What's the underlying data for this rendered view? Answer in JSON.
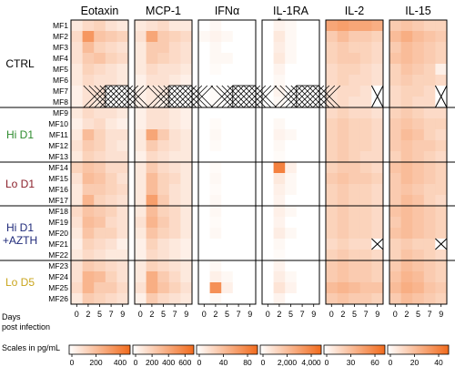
{
  "chart_data": {
    "type": "heatmap",
    "columns": [
      "Eotaxin",
      "MCP-1",
      "IFNα",
      "IL-1RA",
      "IL-2",
      "IL-15"
    ],
    "days": [
      "0",
      "2",
      "5",
      "7",
      "9"
    ],
    "rows": [
      "MF1",
      "MF2",
      "MF3",
      "MF4",
      "MF5",
      "MF6",
      "MF7",
      "MF8",
      "MF9",
      "MF10",
      "MF11",
      "MF12",
      "MF13",
      "MF14",
      "MF15",
      "MF16",
      "MF17",
      "MF18",
      "MF19",
      "MF20",
      "MF21",
      "MF22",
      "MF23",
      "MF24",
      "MF25",
      "MF26"
    ],
    "groups": [
      {
        "label": "CTRL",
        "color": "#000000",
        "rows": [
          0,
          7
        ]
      },
      {
        "label": "Hi D1",
        "color": "#2e8b2e",
        "rows": [
          8,
          12
        ]
      },
      {
        "label": "Lo D1",
        "color": "#8b1f2a",
        "rows": [
          13,
          16
        ]
      },
      {
        "label": "Hi D1",
        "label2": "+AZTH",
        "color": "#1f2a7a",
        "rows": [
          17,
          21
        ]
      },
      {
        "label": "Lo D5",
        "color": "#c9a51c",
        "rows": [
          22,
          25
        ]
      }
    ],
    "significance": [
      {
        "column": "IL-1RA",
        "text": "*"
      }
    ],
    "missing_markers": [
      {
        "column": "Eotaxin",
        "rows": [
          6,
          7
        ],
        "days": [
          3,
          4
        ]
      },
      {
        "column": "MCP-1",
        "rows": [
          6,
          7
        ],
        "days": [
          3,
          4
        ]
      },
      {
        "column": "IFNα",
        "rows": [
          6,
          7
        ],
        "days": [
          3,
          4
        ]
      },
      {
        "column": "IL-1RA",
        "rows": [
          6,
          7
        ],
        "days": [
          3,
          4
        ]
      },
      {
        "column": "IL-2",
        "rows": [
          6,
          7
        ],
        "days": [
          4,
          4
        ]
      },
      {
        "column": "IL-2",
        "rows": [
          20,
          20
        ],
        "days": [
          4,
          4
        ]
      },
      {
        "column": "IL-15",
        "rows": [
          6,
          7
        ],
        "days": [
          4,
          4
        ]
      },
      {
        "column": "IL-15",
        "rows": [
          20,
          20
        ],
        "days": [
          4,
          4
        ]
      }
    ],
    "values": {
      "Eotaxin": [
        [
          0.15,
          0.25,
          0.3,
          0.2,
          0.15
        ],
        [
          0.25,
          0.7,
          0.4,
          0.35,
          0.3
        ],
        [
          0.2,
          0.45,
          0.3,
          0.25,
          0.2
        ],
        [
          0.2,
          0.35,
          0.4,
          0.3,
          0.25
        ],
        [
          0.15,
          0.3,
          0.25,
          0.2,
          0.15
        ],
        [
          0.15,
          0.25,
          0.2,
          0.2,
          0.15
        ],
        [
          0.1,
          0.2,
          0.2,
          0.0,
          0.0
        ],
        [
          0.1,
          0.2,
          0.15,
          0.0,
          0.0
        ],
        [
          0.15,
          0.25,
          0.2,
          0.2,
          0.15
        ],
        [
          0.1,
          0.2,
          0.25,
          0.15,
          0.1
        ],
        [
          0.15,
          0.45,
          0.3,
          0.2,
          0.2
        ],
        [
          0.2,
          0.35,
          0.3,
          0.2,
          0.15
        ],
        [
          0.15,
          0.3,
          0.25,
          0.2,
          0.2
        ],
        [
          0.3,
          0.4,
          0.35,
          0.25,
          0.25
        ],
        [
          0.2,
          0.45,
          0.4,
          0.3,
          0.2
        ],
        [
          0.15,
          0.35,
          0.35,
          0.3,
          0.25
        ],
        [
          0.15,
          0.5,
          0.3,
          0.25,
          0.2
        ],
        [
          0.25,
          0.4,
          0.35,
          0.3,
          0.2
        ],
        [
          0.2,
          0.45,
          0.4,
          0.25,
          0.2
        ],
        [
          0.15,
          0.4,
          0.3,
          0.3,
          0.2
        ],
        [
          0.1,
          0.3,
          0.25,
          0.2,
          0.1
        ],
        [
          0.15,
          0.25,
          0.2,
          0.15,
          0.15
        ],
        [
          0.2,
          0.35,
          0.3,
          0.25,
          0.2
        ],
        [
          0.2,
          0.5,
          0.45,
          0.3,
          0.2
        ],
        [
          0.25,
          0.5,
          0.35,
          0.35,
          0.25
        ],
        [
          0.15,
          0.35,
          0.3,
          0.25,
          0.2
        ]
      ],
      "MCP-1": [
        [
          0.15,
          0.2,
          0.25,
          0.15,
          0.15
        ],
        [
          0.2,
          0.6,
          0.35,
          0.3,
          0.25
        ],
        [
          0.15,
          0.35,
          0.35,
          0.25,
          0.2
        ],
        [
          0.15,
          0.35,
          0.3,
          0.25,
          0.2
        ],
        [
          0.15,
          0.25,
          0.2,
          0.2,
          0.15
        ],
        [
          0.1,
          0.2,
          0.2,
          0.15,
          0.1
        ],
        [
          0.1,
          0.15,
          0.15,
          0.0,
          0.0
        ],
        [
          0.1,
          0.15,
          0.1,
          0.0,
          0.0
        ],
        [
          0.1,
          0.2,
          0.2,
          0.15,
          0.1
        ],
        [
          0.1,
          0.2,
          0.2,
          0.15,
          0.1
        ],
        [
          0.15,
          0.6,
          0.35,
          0.2,
          0.15
        ],
        [
          0.15,
          0.35,
          0.25,
          0.2,
          0.15
        ],
        [
          0.1,
          0.25,
          0.2,
          0.15,
          0.15
        ],
        [
          0.15,
          0.35,
          0.25,
          0.2,
          0.15
        ],
        [
          0.15,
          0.45,
          0.3,
          0.25,
          0.15
        ],
        [
          0.15,
          0.45,
          0.3,
          0.2,
          0.15
        ],
        [
          0.15,
          0.65,
          0.35,
          0.2,
          0.15
        ],
        [
          0.15,
          0.45,
          0.3,
          0.25,
          0.15
        ],
        [
          0.2,
          0.5,
          0.35,
          0.25,
          0.15
        ],
        [
          0.15,
          0.4,
          0.3,
          0.25,
          0.15
        ],
        [
          0.1,
          0.3,
          0.2,
          0.15,
          0.1
        ],
        [
          0.1,
          0.25,
          0.2,
          0.15,
          0.1
        ],
        [
          0.15,
          0.3,
          0.25,
          0.2,
          0.15
        ],
        [
          0.15,
          0.55,
          0.35,
          0.25,
          0.15
        ],
        [
          0.2,
          0.55,
          0.4,
          0.3,
          0.2
        ],
        [
          0.1,
          0.35,
          0.25,
          0.2,
          0.15
        ]
      ],
      "IFNα": [
        [
          0.0,
          0.05,
          0.0,
          0.0,
          0.0
        ],
        [
          0.05,
          0.08,
          0.05,
          0.0,
          0.0
        ],
        [
          0.0,
          0.05,
          0.0,
          0.0,
          0.0
        ],
        [
          0.0,
          0.05,
          0.05,
          0.0,
          0.0
        ],
        [
          0.0,
          0.03,
          0.0,
          0.0,
          0.0
        ],
        [
          0.0,
          0.0,
          0.0,
          0.0,
          0.0
        ],
        [
          0.0,
          0.03,
          0.0,
          0.0,
          0.0
        ],
        [
          0.0,
          0.03,
          0.0,
          0.0,
          0.0
        ],
        [
          0.0,
          0.0,
          0.0,
          0.0,
          0.0
        ],
        [
          0.0,
          0.03,
          0.0,
          0.0,
          0.0
        ],
        [
          0.0,
          0.05,
          0.0,
          0.0,
          0.0
        ],
        [
          0.0,
          0.03,
          0.0,
          0.0,
          0.0
        ],
        [
          0.0,
          0.0,
          0.0,
          0.0,
          0.0
        ],
        [
          0.0,
          0.03,
          0.0,
          0.0,
          0.0
        ],
        [
          0.0,
          0.05,
          0.0,
          0.0,
          0.0
        ],
        [
          0.0,
          0.03,
          0.0,
          0.0,
          0.0
        ],
        [
          0.0,
          0.05,
          0.0,
          0.0,
          0.0
        ],
        [
          0.0,
          0.05,
          0.0,
          0.0,
          0.0
        ],
        [
          0.0,
          0.03,
          0.0,
          0.0,
          0.0
        ],
        [
          0.0,
          0.05,
          0.0,
          0.0,
          0.0
        ],
        [
          0.0,
          0.0,
          0.0,
          0.0,
          0.0
        ],
        [
          0.0,
          0.0,
          0.0,
          0.0,
          0.0
        ],
        [
          0.0,
          0.05,
          0.0,
          0.0,
          0.0
        ],
        [
          0.0,
          0.1,
          0.05,
          0.0,
          0.0
        ],
        [
          0.0,
          0.75,
          0.1,
          0.0,
          0.0
        ],
        [
          0.0,
          0.05,
          0.0,
          0.0,
          0.0
        ]
      ],
      "IL-1RA": [
        [
          0.0,
          0.08,
          0.05,
          0.0,
          0.0
        ],
        [
          0.0,
          0.15,
          0.05,
          0.0,
          0.0
        ],
        [
          0.0,
          0.12,
          0.05,
          0.0,
          0.0
        ],
        [
          0.0,
          0.15,
          0.05,
          0.0,
          0.0
        ],
        [
          0.0,
          0.08,
          0.0,
          0.0,
          0.0
        ],
        [
          0.0,
          0.05,
          0.0,
          0.0,
          0.0
        ],
        [
          0.0,
          0.08,
          0.0,
          0.0,
          0.0
        ],
        [
          0.0,
          0.05,
          0.0,
          0.0,
          0.0
        ],
        [
          0.0,
          0.0,
          0.0,
          0.0,
          0.0
        ],
        [
          0.0,
          0.05,
          0.0,
          0.0,
          0.0
        ],
        [
          0.0,
          0.08,
          0.05,
          0.0,
          0.0
        ],
        [
          0.0,
          0.05,
          0.0,
          0.0,
          0.0
        ],
        [
          0.0,
          0.03,
          0.0,
          0.0,
          0.0
        ],
        [
          0.0,
          0.85,
          0.1,
          0.0,
          0.0
        ],
        [
          0.0,
          0.15,
          0.05,
          0.0,
          0.0
        ],
        [
          0.0,
          0.1,
          0.05,
          0.0,
          0.0
        ],
        [
          0.0,
          0.08,
          0.0,
          0.0,
          0.0
        ],
        [
          0.0,
          0.1,
          0.05,
          0.0,
          0.0
        ],
        [
          0.0,
          0.08,
          0.0,
          0.0,
          0.0
        ],
        [
          0.0,
          0.12,
          0.05,
          0.0,
          0.0
        ],
        [
          0.0,
          0.05,
          0.0,
          0.0,
          0.0
        ],
        [
          0.0,
          0.03,
          0.0,
          0.0,
          0.0
        ],
        [
          0.0,
          0.08,
          0.0,
          0.0,
          0.0
        ],
        [
          0.0,
          0.12,
          0.05,
          0.0,
          0.0
        ],
        [
          0.0,
          0.18,
          0.08,
          0.0,
          0.0
        ],
        [
          0.0,
          0.08,
          0.0,
          0.0,
          0.0
        ]
      ],
      "IL-2": [
        [
          0.6,
          0.65,
          0.6,
          0.6,
          0.55
        ],
        [
          0.35,
          0.45,
          0.35,
          0.35,
          0.3
        ],
        [
          0.3,
          0.35,
          0.3,
          0.3,
          0.25
        ],
        [
          0.3,
          0.35,
          0.35,
          0.3,
          0.25
        ],
        [
          0.25,
          0.3,
          0.3,
          0.25,
          0.2
        ],
        [
          0.25,
          0.3,
          0.25,
          0.25,
          0.2
        ],
        [
          0.2,
          0.25,
          0.25,
          0.2,
          0.0
        ],
        [
          0.2,
          0.25,
          0.2,
          0.2,
          0.0
        ],
        [
          0.25,
          0.3,
          0.25,
          0.25,
          0.2
        ],
        [
          0.3,
          0.35,
          0.3,
          0.3,
          0.25
        ],
        [
          0.3,
          0.35,
          0.3,
          0.3,
          0.25
        ],
        [
          0.3,
          0.35,
          0.3,
          0.3,
          0.25
        ],
        [
          0.3,
          0.35,
          0.3,
          0.25,
          0.25
        ],
        [
          0.3,
          0.35,
          0.35,
          0.3,
          0.25
        ],
        [
          0.35,
          0.4,
          0.35,
          0.35,
          0.3
        ],
        [
          0.3,
          0.35,
          0.3,
          0.3,
          0.25
        ],
        [
          0.3,
          0.35,
          0.3,
          0.3,
          0.25
        ],
        [
          0.3,
          0.35,
          0.3,
          0.3,
          0.25
        ],
        [
          0.3,
          0.35,
          0.3,
          0.3,
          0.25
        ],
        [
          0.3,
          0.35,
          0.3,
          0.3,
          0.25
        ],
        [
          0.25,
          0.3,
          0.25,
          0.25,
          0.0
        ],
        [
          0.3,
          0.35,
          0.3,
          0.3,
          0.25
        ],
        [
          0.35,
          0.4,
          0.35,
          0.35,
          0.3
        ],
        [
          0.35,
          0.4,
          0.35,
          0.35,
          0.3
        ],
        [
          0.45,
          0.5,
          0.45,
          0.4,
          0.4
        ],
        [
          0.35,
          0.4,
          0.35,
          0.35,
          0.3
        ]
      ],
      "IL-15": [
        [
          0.35,
          0.4,
          0.35,
          0.3,
          0.3
        ],
        [
          0.45,
          0.55,
          0.45,
          0.4,
          0.35
        ],
        [
          0.35,
          0.45,
          0.4,
          0.35,
          0.3
        ],
        [
          0.4,
          0.45,
          0.4,
          0.35,
          0.3
        ],
        [
          0.3,
          0.4,
          0.35,
          0.3,
          0.1
        ],
        [
          0.3,
          0.35,
          0.3,
          0.3,
          0.25
        ],
        [
          0.25,
          0.3,
          0.3,
          0.25,
          0.0
        ],
        [
          0.25,
          0.3,
          0.25,
          0.25,
          0.0
        ],
        [
          0.3,
          0.35,
          0.3,
          0.25,
          0.25
        ],
        [
          0.35,
          0.4,
          0.35,
          0.3,
          0.3
        ],
        [
          0.35,
          0.45,
          0.4,
          0.3,
          0.25
        ],
        [
          0.35,
          0.4,
          0.35,
          0.35,
          0.3
        ],
        [
          0.3,
          0.4,
          0.35,
          0.3,
          0.25
        ],
        [
          0.4,
          0.45,
          0.4,
          0.35,
          0.3
        ],
        [
          0.35,
          0.45,
          0.4,
          0.35,
          0.3
        ],
        [
          0.35,
          0.4,
          0.35,
          0.3,
          0.3
        ],
        [
          0.35,
          0.45,
          0.4,
          0.3,
          0.25
        ],
        [
          0.4,
          0.45,
          0.4,
          0.35,
          0.3
        ],
        [
          0.35,
          0.45,
          0.4,
          0.35,
          0.3
        ],
        [
          0.4,
          0.45,
          0.4,
          0.35,
          0.3
        ],
        [
          0.3,
          0.35,
          0.3,
          0.3,
          0.0
        ],
        [
          0.3,
          0.4,
          0.35,
          0.3,
          0.25
        ],
        [
          0.35,
          0.45,
          0.4,
          0.35,
          0.3
        ],
        [
          0.4,
          0.5,
          0.45,
          0.35,
          0.3
        ],
        [
          0.45,
          0.55,
          0.5,
          0.4,
          0.35
        ],
        [
          0.35,
          0.45,
          0.4,
          0.35,
          0.3
        ]
      ]
    },
    "scales": [
      {
        "column": "Eotaxin",
        "ticks": [
          "0",
          "200",
          "400"
        ]
      },
      {
        "column": "MCP-1",
        "ticks": [
          "0",
          "200",
          "400",
          "600"
        ]
      },
      {
        "column": "IFNα",
        "ticks": [
          "0",
          "40",
          "80"
        ]
      },
      {
        "column": "IL-1RA",
        "ticks": [
          "0",
          "2,000",
          "4,000"
        ]
      },
      {
        "column": "IL-2",
        "ticks": [
          "0",
          "30",
          "60"
        ]
      },
      {
        "column": "IL-15",
        "ticks": [
          "0",
          "20",
          "40"
        ]
      }
    ],
    "colors": {
      "low": "#ffffff",
      "high": "#f26b1d",
      "border": "#000000"
    }
  },
  "labels": {
    "days_line1": "Days",
    "days_line2": "post infection",
    "scales_title": "Scales in pg/mL"
  }
}
